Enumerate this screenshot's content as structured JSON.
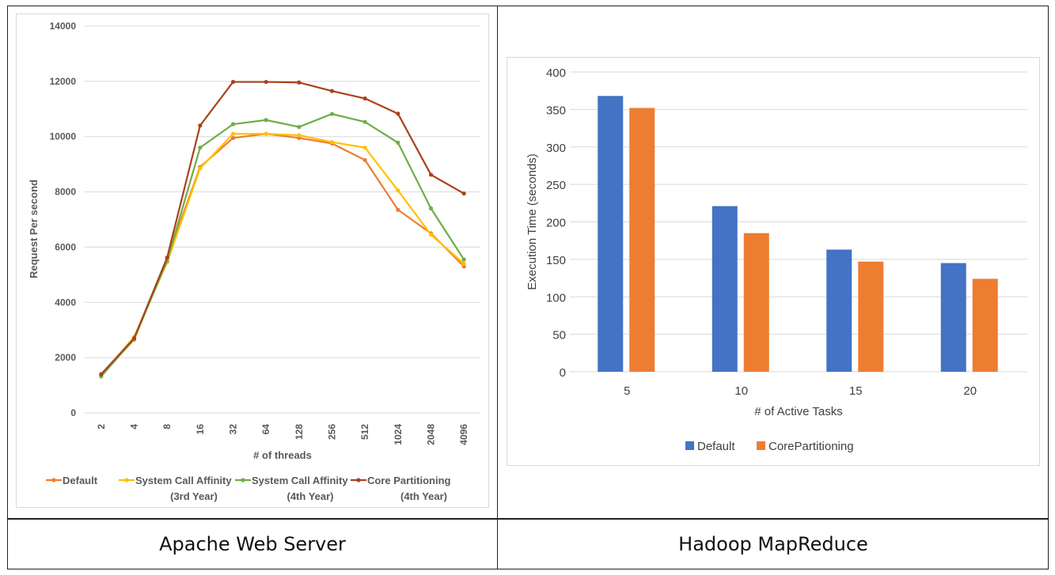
{
  "captions": {
    "left": "Apache Web Server",
    "right": "Hadoop MapReduce"
  },
  "chart_data": [
    {
      "type": "line",
      "title": "",
      "xlabel": "# of threads",
      "ylabel": "Request Per second",
      "categories": [
        "2",
        "4",
        "8",
        "16",
        "32",
        "64",
        "128",
        "256",
        "512",
        "1024",
        "2048",
        "4096"
      ],
      "ylim": [
        0,
        14000
      ],
      "yticks": [
        "0",
        "2000",
        "4000",
        "6000",
        "8000",
        "10000",
        "12000",
        "14000"
      ],
      "grid": true,
      "legend_position": "bottom",
      "series": [
        {
          "name": "Default",
          "name_line2": "",
          "color": "#ED7D31",
          "values": [
            1380,
            2650,
            5600,
            8900,
            9950,
            10100,
            9950,
            9750,
            9150,
            7350,
            6500,
            5300
          ]
        },
        {
          "name": "System Call Affinity",
          "name_line2": "(3rd Year)",
          "color": "#FFC000",
          "values": [
            1350,
            2750,
            5450,
            8850,
            10100,
            10100,
            10050,
            9800,
            9600,
            8050,
            6450,
            5400
          ]
        },
        {
          "name": "System Call Affinity",
          "name_line2": "(4th Year)",
          "color": "#70AD47",
          "values": [
            1320,
            2680,
            5500,
            9600,
            10450,
            10600,
            10350,
            10820,
            10530,
            9780,
            7400,
            5550
          ]
        },
        {
          "name": "Core Partitioning",
          "name_line2": "(4th Year)",
          "color": "#A9411B",
          "values": [
            1400,
            2700,
            5620,
            10400,
            11980,
            11980,
            11960,
            11650,
            11380,
            10830,
            8620,
            7940
          ]
        }
      ]
    },
    {
      "type": "bar",
      "title": "",
      "xlabel": "# of Active Tasks",
      "ylabel": "Execution Time (seconds)",
      "categories": [
        "5",
        "10",
        "15",
        "20"
      ],
      "ylim": [
        0,
        400
      ],
      "yticks": [
        "0",
        "50",
        "100",
        "150",
        "200",
        "250",
        "300",
        "350",
        "400"
      ],
      "grid": true,
      "legend_position": "bottom",
      "series": [
        {
          "name": "Default",
          "color": "#4472C4",
          "values": [
            368,
            221,
            163,
            145
          ]
        },
        {
          "name": "CorePartitioning",
          "color": "#ED7D31",
          "values": [
            352,
            185,
            147,
            124
          ]
        }
      ]
    }
  ]
}
